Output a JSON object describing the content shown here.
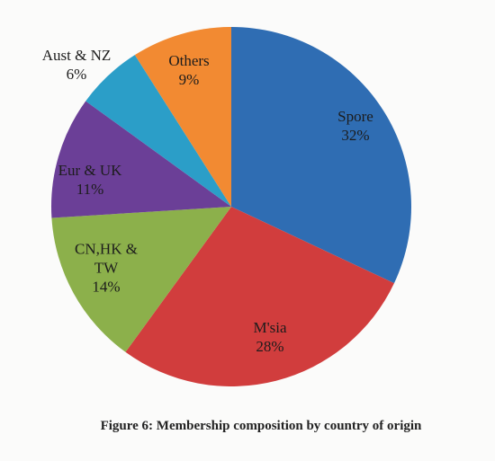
{
  "chart_data": {
    "type": "pie",
    "title": "Figure 6: Membership composition by country of origin",
    "categories": [
      "Spore",
      "M'sia",
      "CN,HK & TW",
      "Eur & UK",
      "Aust & NZ",
      "Others"
    ],
    "values": [
      32,
      28,
      14,
      11,
      6,
      9
    ],
    "value_labels": [
      "32%",
      "28%",
      "14%",
      "11%",
      "6%",
      "9%"
    ],
    "colors": [
      "#2f6db3",
      "#d13d3d",
      "#8cb04b",
      "#6b3f97",
      "#2b9ec8",
      "#f28a32"
    ]
  }
}
